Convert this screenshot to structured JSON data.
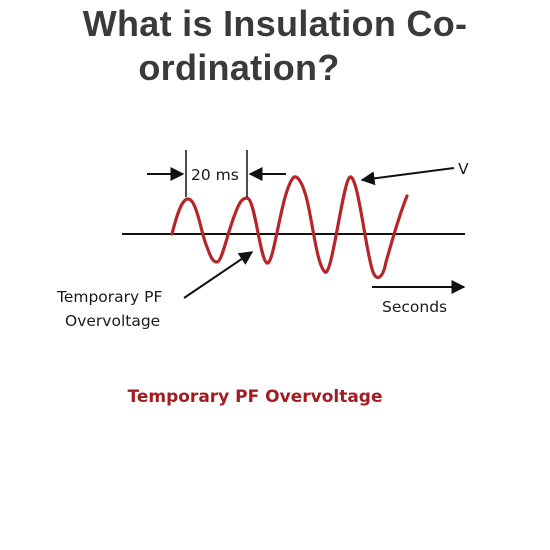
{
  "slide": {
    "title_line1": "What is Insulation Co-",
    "title_line2": "ordination?",
    "caption": "Temporary PF Overvoltage"
  },
  "diagram": {
    "period_label": "20 ms",
    "voltage_label": "V",
    "overvoltage_label_line1": "Temporary PF",
    "overvoltage_label_line2": "Overvoltage",
    "time_label": "Seconds"
  },
  "colors": {
    "title": "#3a3a3a",
    "waveform": "#b5262b",
    "caption": "#a11d21",
    "lines": "#111111"
  }
}
